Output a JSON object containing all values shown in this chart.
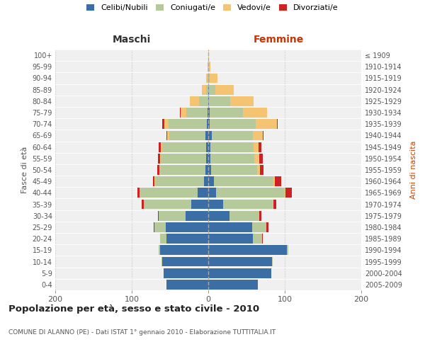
{
  "age_groups": [
    "0-4",
    "5-9",
    "10-14",
    "15-19",
    "20-24",
    "25-29",
    "30-34",
    "35-39",
    "40-44",
    "45-49",
    "50-54",
    "55-59",
    "60-64",
    "65-69",
    "70-74",
    "75-79",
    "80-84",
    "85-89",
    "90-94",
    "95-99",
    "100+"
  ],
  "birth_years": [
    "2005-2009",
    "2000-2004",
    "1995-1999",
    "1990-1994",
    "1985-1989",
    "1980-1984",
    "1975-1979",
    "1970-1974",
    "1965-1969",
    "1960-1964",
    "1955-1959",
    "1950-1954",
    "1945-1949",
    "1940-1944",
    "1935-1939",
    "1930-1934",
    "1925-1929",
    "1920-1924",
    "1915-1919",
    "1910-1914",
    "≤ 1909"
  ],
  "colors": {
    "celibi": "#3a6ea5",
    "coniugati": "#b5c99a",
    "vedovi": "#f5c472",
    "divorziati": "#cc2222"
  },
  "maschi": {
    "celibi": [
      55,
      58,
      60,
      63,
      55,
      56,
      30,
      22,
      14,
      6,
      4,
      3,
      3,
      4,
      2,
      1,
      0,
      0,
      0,
      0,
      0
    ],
    "coniugati": [
      0,
      0,
      1,
      2,
      8,
      14,
      35,
      62,
      76,
      63,
      59,
      59,
      57,
      47,
      50,
      28,
      12,
      3,
      1,
      0,
      0
    ],
    "vedovi": [
      0,
      0,
      0,
      0,
      0,
      0,
      0,
      0,
      0,
      1,
      1,
      1,
      2,
      3,
      5,
      7,
      12,
      5,
      2,
      1,
      0
    ],
    "divorziati": [
      0,
      0,
      0,
      0,
      0,
      1,
      1,
      3,
      3,
      2,
      3,
      3,
      3,
      1,
      3,
      1,
      0,
      0,
      0,
      0,
      0
    ]
  },
  "femmine": {
    "celibi": [
      65,
      82,
      83,
      103,
      58,
      57,
      28,
      19,
      10,
      7,
      4,
      3,
      3,
      5,
      2,
      2,
      1,
      1,
      0,
      0,
      0
    ],
    "coniugati": [
      0,
      0,
      1,
      2,
      12,
      19,
      39,
      65,
      90,
      78,
      60,
      57,
      56,
      53,
      60,
      43,
      28,
      8,
      2,
      0,
      0
    ],
    "vedovi": [
      0,
      0,
      0,
      0,
      0,
      0,
      0,
      1,
      1,
      2,
      4,
      7,
      7,
      13,
      28,
      32,
      30,
      24,
      10,
      3,
      1
    ],
    "divorziati": [
      0,
      0,
      0,
      0,
      1,
      3,
      2,
      4,
      8,
      8,
      4,
      4,
      3,
      1,
      1,
      0,
      0,
      0,
      0,
      0,
      0
    ]
  },
  "title": "Popolazione per età, sesso e stato civile - 2010",
  "subtitle": "COMUNE DI ALANNO (PE) - Dati ISTAT 1° gennaio 2010 - Elaborazione TUTTITALIA.IT",
  "xlabel_left": "Maschi",
  "xlabel_right": "Femmine",
  "ylabel_left": "Fasce di età",
  "ylabel_right": "Anni di nascita",
  "xlim": 200,
  "legend_labels": [
    "Celibi/Nubili",
    "Coniugati/e",
    "Vedovi/e",
    "Divorziati/e"
  ],
  "background_color": "#ffffff",
  "plot_bg": "#f0f0f0"
}
